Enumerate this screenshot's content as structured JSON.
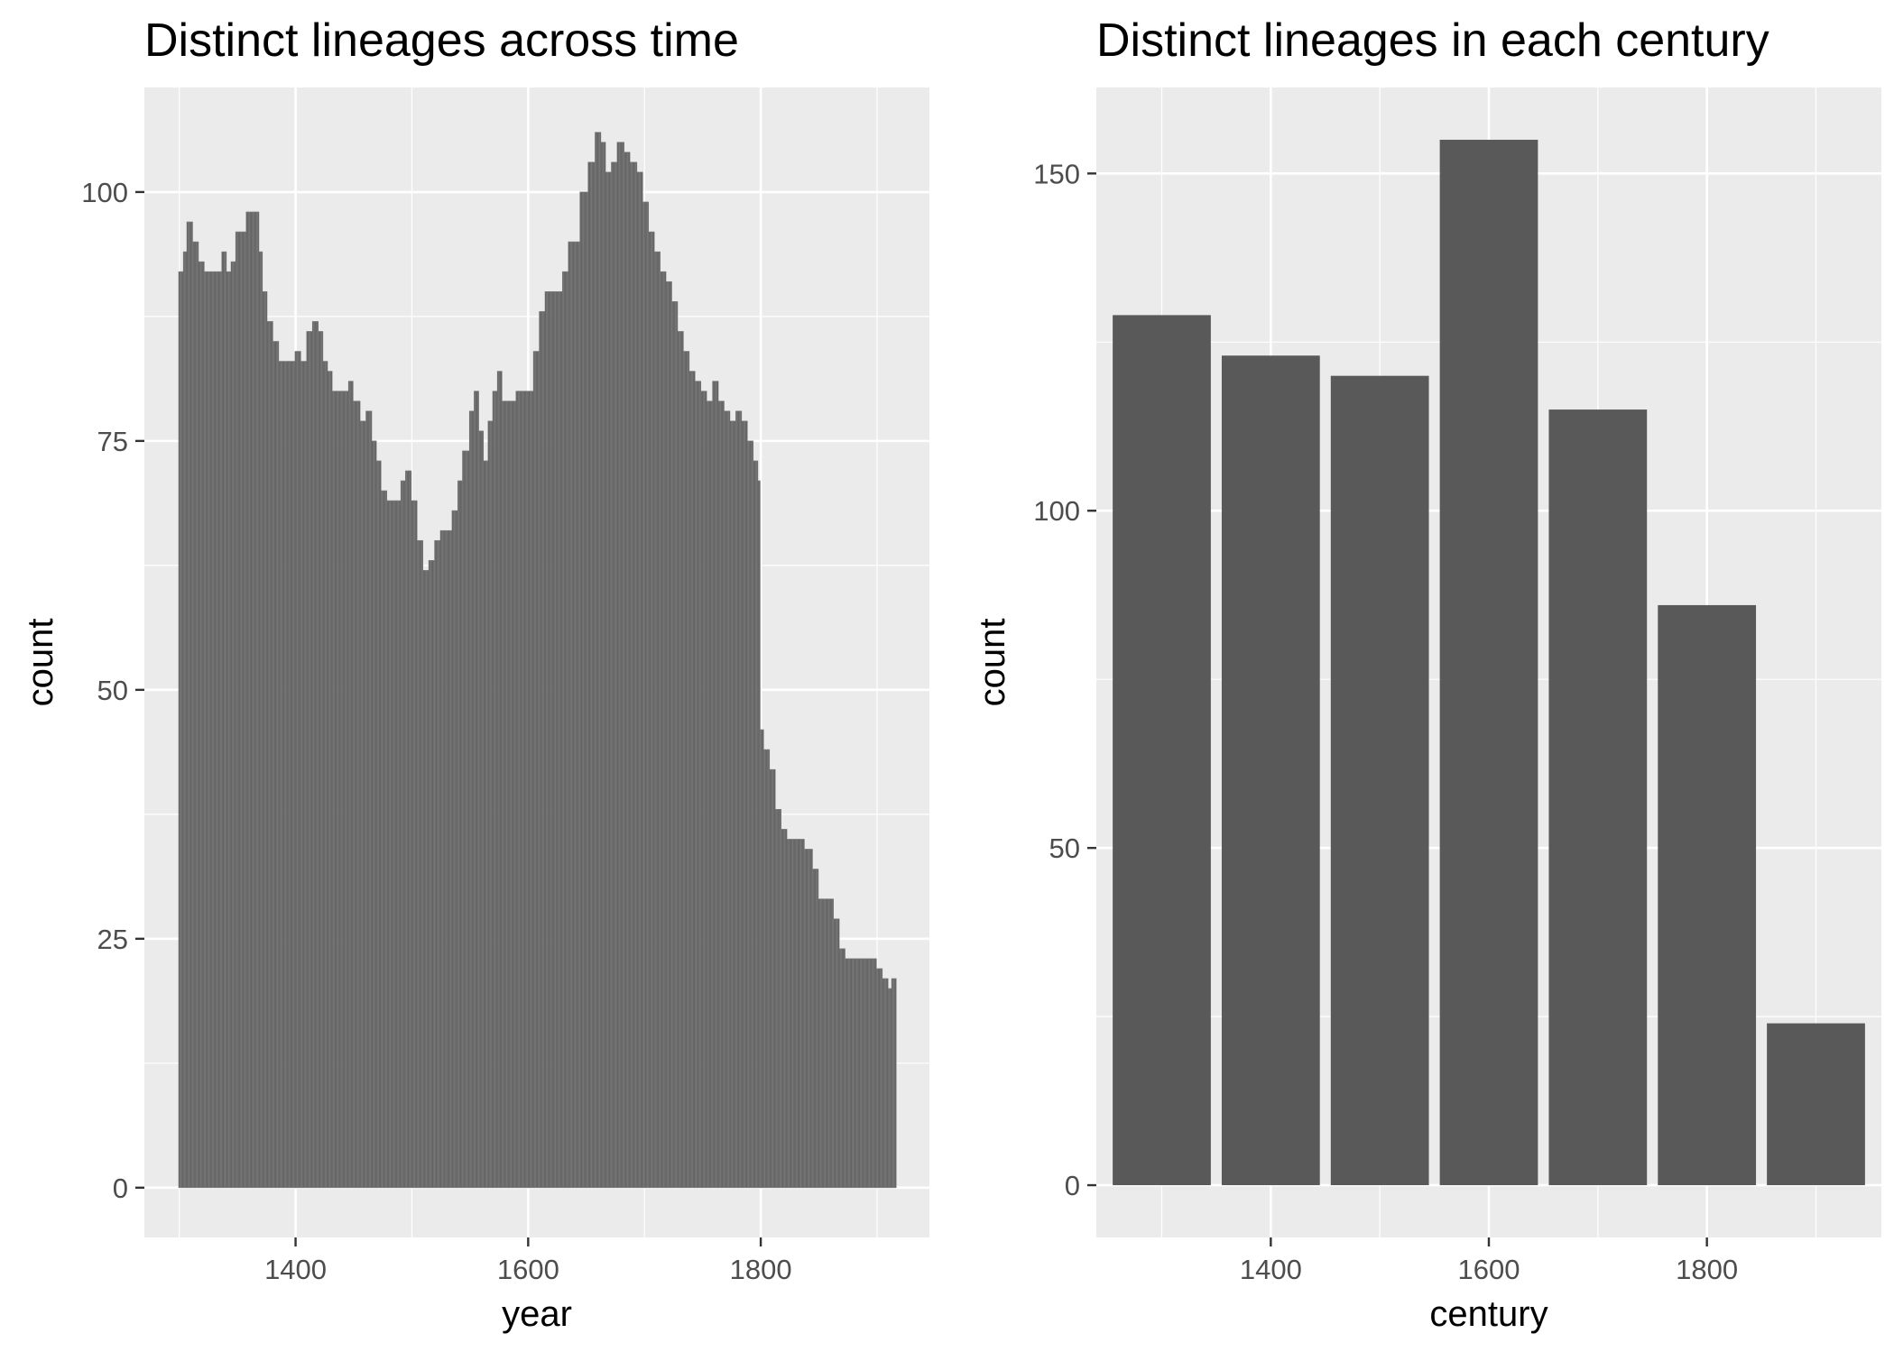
{
  "chart_data": [
    {
      "type": "bar",
      "title": "Distinct lineages across time",
      "xlabel": "year",
      "ylabel": "count",
      "xlim": [
        1270,
        1945
      ],
      "ylim": [
        -5,
        110.5
      ],
      "x_ticks": [
        1400,
        1600,
        1800
      ],
      "y_ticks": [
        0,
        25,
        50,
        75,
        100
      ],
      "grid": true,
      "bar_color": "#595959",
      "bar_outline": "#7f7f7f",
      "keypoints": [
        [
          1300,
          92
        ],
        [
          1304,
          94
        ],
        [
          1307,
          97
        ],
        [
          1312,
          95
        ],
        [
          1317,
          93
        ],
        [
          1322,
          92
        ],
        [
          1336,
          92
        ],
        [
          1337,
          94
        ],
        [
          1341,
          92
        ],
        [
          1345,
          93
        ],
        [
          1349,
          96
        ],
        [
          1355,
          96
        ],
        [
          1358,
          98
        ],
        [
          1365,
          98
        ],
        [
          1369,
          94
        ],
        [
          1372,
          90
        ],
        [
          1376,
          87
        ],
        [
          1381,
          85
        ],
        [
          1386,
          83
        ],
        [
          1392,
          83
        ],
        [
          1400,
          84
        ],
        [
          1405,
          83
        ],
        [
          1410,
          86
        ],
        [
          1415,
          87
        ],
        [
          1420,
          86
        ],
        [
          1424,
          83
        ],
        [
          1428,
          82
        ],
        [
          1432,
          80
        ],
        [
          1440,
          80
        ],
        [
          1446,
          81
        ],
        [
          1450,
          79
        ],
        [
          1456,
          77
        ],
        [
          1461,
          78
        ],
        [
          1466,
          75
        ],
        [
          1470,
          73
        ],
        [
          1474,
          70
        ],
        [
          1479,
          69
        ],
        [
          1487,
          69
        ],
        [
          1491,
          71
        ],
        [
          1495,
          72
        ],
        [
          1500,
          69
        ],
        [
          1505,
          65
        ],
        [
          1510,
          62
        ],
        [
          1515,
          63
        ],
        [
          1520,
          65
        ],
        [
          1525,
          66
        ],
        [
          1530,
          66
        ],
        [
          1535,
          68
        ],
        [
          1540,
          71
        ],
        [
          1544,
          74
        ],
        [
          1550,
          78
        ],
        [
          1554,
          80
        ],
        [
          1558,
          76
        ],
        [
          1562,
          73
        ],
        [
          1566,
          77
        ],
        [
          1570,
          80
        ],
        [
          1574,
          82
        ],
        [
          1578,
          79
        ],
        [
          1582,
          79
        ],
        [
          1590,
          80
        ],
        [
          1600,
          80
        ],
        [
          1605,
          84
        ],
        [
          1610,
          88
        ],
        [
          1615,
          90
        ],
        [
          1625,
          90
        ],
        [
          1630,
          92
        ],
        [
          1635,
          95
        ],
        [
          1640,
          95
        ],
        [
          1645,
          100
        ],
        [
          1652,
          103
        ],
        [
          1658,
          106
        ],
        [
          1663,
          105
        ],
        [
          1667,
          102
        ],
        [
          1672,
          103
        ],
        [
          1677,
          105
        ],
        [
          1683,
          104
        ],
        [
          1688,
          103
        ],
        [
          1694,
          102
        ],
        [
          1699,
          99
        ],
        [
          1704,
          96
        ],
        [
          1709,
          94
        ],
        [
          1714,
          92
        ],
        [
          1719,
          91
        ],
        [
          1724,
          89
        ],
        [
          1729,
          86
        ],
        [
          1734,
          84
        ],
        [
          1739,
          82
        ],
        [
          1744,
          81
        ],
        [
          1749,
          80
        ],
        [
          1754,
          79
        ],
        [
          1759,
          81
        ],
        [
          1764,
          79
        ],
        [
          1769,
          78
        ],
        [
          1774,
          77
        ],
        [
          1779,
          78
        ],
        [
          1784,
          77
        ],
        [
          1789,
          75
        ],
        [
          1794,
          73
        ],
        [
          1798,
          71
        ],
        [
          1800,
          46
        ],
        [
          1803,
          44
        ],
        [
          1808,
          42
        ],
        [
          1813,
          38
        ],
        [
          1818,
          36
        ],
        [
          1823,
          35
        ],
        [
          1833,
          35
        ],
        [
          1838,
          34
        ],
        [
          1845,
          32
        ],
        [
          1850,
          29
        ],
        [
          1858,
          29
        ],
        [
          1863,
          27
        ],
        [
          1868,
          24
        ],
        [
          1873,
          23
        ],
        [
          1895,
          23
        ],
        [
          1900,
          22
        ],
        [
          1905,
          21
        ],
        [
          1910,
          20
        ],
        [
          1913,
          21
        ],
        [
          1916,
          21
        ]
      ]
    },
    {
      "type": "bar",
      "title": "Distinct lineages in each century",
      "xlabel": "century",
      "ylabel": "count",
      "x": [
        1300,
        1400,
        1500,
        1600,
        1700,
        1800,
        1900
      ],
      "values": [
        129,
        123,
        120,
        155,
        115,
        86,
        24
      ],
      "xlim": [
        1240,
        1960
      ],
      "ylim": [
        -7.75,
        162.75
      ],
      "x_ticks": [
        1400,
        1600,
        1800
      ],
      "y_ticks": [
        0,
        50,
        100,
        150
      ],
      "grid": true,
      "bar_color": "#595959"
    }
  ]
}
